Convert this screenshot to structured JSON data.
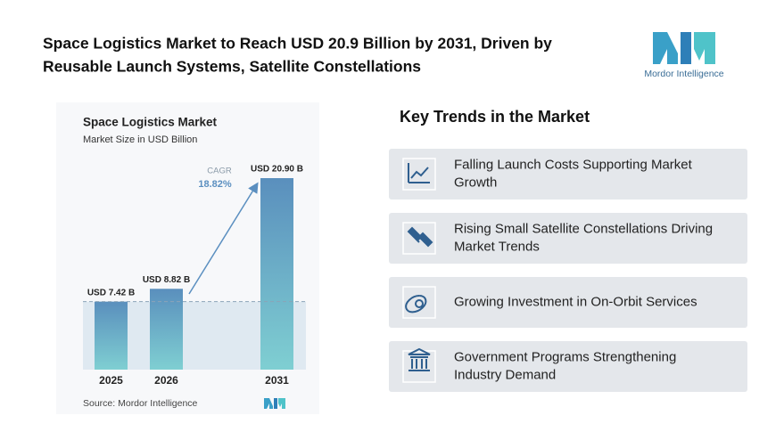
{
  "header": {
    "title_lines": [
      "Space Logistics Market to Reach USD 20.9 Billion by 2031, Driven by",
      "Reusable Launch Systems, Satellite Constellations"
    ],
    "logo_text": "Mordor Intelligence"
  },
  "chart_data": {
    "type": "bar",
    "title": "Space Logistics Market",
    "subtitle": "Market Size in USD Billion",
    "categories": [
      "2025",
      "2026",
      "2031"
    ],
    "values": [
      7.42,
      8.82,
      20.9
    ],
    "value_labels": [
      "USD 7.42 B",
      "USD 8.82 B",
      "USD 20.90 B"
    ],
    "annotation": {
      "label": "CAGR",
      "value": "18.82%"
    },
    "source": "Source: Mordor Intelligence"
  },
  "trends": {
    "title": "Key Trends in the Market",
    "items": [
      {
        "lines": [
          "Falling Launch Costs Supporting Market",
          "Growth"
        ]
      },
      {
        "lines": [
          "Rising Small Satellite Constellations Driving",
          "Market Trends"
        ]
      },
      {
        "lines": [
          "Growing Investment in On-Orbit Services"
        ]
      },
      {
        "lines": [
          "Government Programs Strengthening",
          "Industry Demand"
        ]
      }
    ]
  }
}
